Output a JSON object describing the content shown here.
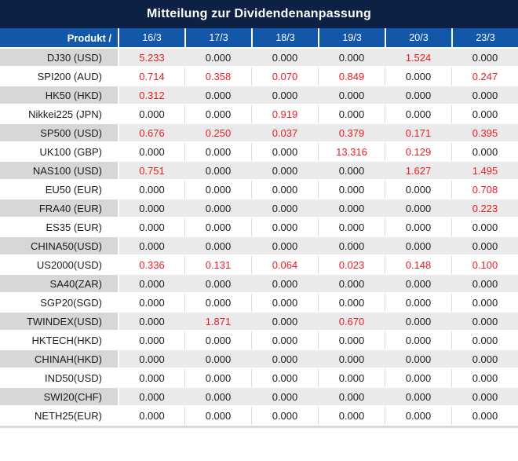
{
  "window": {
    "title": "Mitteilung zur Dividendenanpassung"
  },
  "table": {
    "product_column_header": "Produkt /",
    "date_headers": [
      "16/3",
      "17/3",
      "18/3",
      "19/3",
      "20/3",
      "23/3"
    ],
    "rows": [
      {
        "product": "DJ30 (USD)",
        "cells": [
          {
            "v": "5.233",
            "red": true
          },
          {
            "v": "0.000",
            "red": false
          },
          {
            "v": "0.000",
            "red": false
          },
          {
            "v": "0.000",
            "red": false
          },
          {
            "v": "1.524",
            "red": true
          },
          {
            "v": "0.000",
            "red": false
          }
        ]
      },
      {
        "product": "SPI200 (AUD)",
        "cells": [
          {
            "v": "0.714",
            "red": true
          },
          {
            "v": "0.358",
            "red": true
          },
          {
            "v": "0.070",
            "red": true
          },
          {
            "v": "0.849",
            "red": true
          },
          {
            "v": "0.000",
            "red": false
          },
          {
            "v": "0.247",
            "red": true
          }
        ]
      },
      {
        "product": "HK50 (HKD)",
        "cells": [
          {
            "v": "0.312",
            "red": true
          },
          {
            "v": "0.000",
            "red": false
          },
          {
            "v": "0.000",
            "red": false
          },
          {
            "v": "0.000",
            "red": false
          },
          {
            "v": "0.000",
            "red": false
          },
          {
            "v": "0.000",
            "red": false
          }
        ]
      },
      {
        "product": "Nikkei225 (JPN)",
        "cells": [
          {
            "v": "0.000",
            "red": false
          },
          {
            "v": "0.000",
            "red": false
          },
          {
            "v": "0.919",
            "red": true
          },
          {
            "v": "0.000",
            "red": false
          },
          {
            "v": "0.000",
            "red": false
          },
          {
            "v": "0.000",
            "red": false
          }
        ]
      },
      {
        "product": "SP500 (USD)",
        "cells": [
          {
            "v": "0.676",
            "red": true
          },
          {
            "v": "0.250",
            "red": true
          },
          {
            "v": "0.037",
            "red": true
          },
          {
            "v": "0.379",
            "red": true
          },
          {
            "v": "0.171",
            "red": true
          },
          {
            "v": "0.395",
            "red": true
          }
        ]
      },
      {
        "product": "UK100 (GBP)",
        "cells": [
          {
            "v": "0.000",
            "red": false
          },
          {
            "v": "0.000",
            "red": false
          },
          {
            "v": "0.000",
            "red": false
          },
          {
            "v": "13.316",
            "red": true
          },
          {
            "v": "0.129",
            "red": true
          },
          {
            "v": "0.000",
            "red": false
          }
        ]
      },
      {
        "product": "NAS100 (USD)",
        "cells": [
          {
            "v": "0.751",
            "red": true
          },
          {
            "v": "0.000",
            "red": false
          },
          {
            "v": "0.000",
            "red": false
          },
          {
            "v": "0.000",
            "red": false
          },
          {
            "v": "1.627",
            "red": true
          },
          {
            "v": "1.495",
            "red": true
          }
        ]
      },
      {
        "product": "EU50 (EUR)",
        "cells": [
          {
            "v": "0.000",
            "red": false
          },
          {
            "v": "0.000",
            "red": false
          },
          {
            "v": "0.000",
            "red": false
          },
          {
            "v": "0.000",
            "red": false
          },
          {
            "v": "0.000",
            "red": false
          },
          {
            "v": "0.708",
            "red": true
          }
        ]
      },
      {
        "product": "FRA40 (EUR)",
        "cells": [
          {
            "v": "0.000",
            "red": false
          },
          {
            "v": "0.000",
            "red": false
          },
          {
            "v": "0.000",
            "red": false
          },
          {
            "v": "0.000",
            "red": false
          },
          {
            "v": "0.000",
            "red": false
          },
          {
            "v": "0.223",
            "red": true
          }
        ]
      },
      {
        "product": "ES35 (EUR)",
        "cells": [
          {
            "v": "0.000",
            "red": false
          },
          {
            "v": "0.000",
            "red": false
          },
          {
            "v": "0.000",
            "red": false
          },
          {
            "v": "0.000",
            "red": false
          },
          {
            "v": "0.000",
            "red": false
          },
          {
            "v": "0.000",
            "red": false
          }
        ]
      },
      {
        "product": "CHINA50(USD)",
        "cells": [
          {
            "v": "0.000",
            "red": false
          },
          {
            "v": "0.000",
            "red": false
          },
          {
            "v": "0.000",
            "red": false
          },
          {
            "v": "0.000",
            "red": false
          },
          {
            "v": "0.000",
            "red": false
          },
          {
            "v": "0.000",
            "red": false
          }
        ]
      },
      {
        "product": "US2000(USD)",
        "cells": [
          {
            "v": "0.336",
            "red": true
          },
          {
            "v": "0.131",
            "red": true
          },
          {
            "v": "0.064",
            "red": true
          },
          {
            "v": "0.023",
            "red": true
          },
          {
            "v": "0.148",
            "red": true
          },
          {
            "v": "0.100",
            "red": true
          }
        ]
      },
      {
        "product": "SA40(ZAR)",
        "cells": [
          {
            "v": "0.000",
            "red": false
          },
          {
            "v": "0.000",
            "red": false
          },
          {
            "v": "0.000",
            "red": false
          },
          {
            "v": "0.000",
            "red": false
          },
          {
            "v": "0.000",
            "red": false
          },
          {
            "v": "0.000",
            "red": false
          }
        ]
      },
      {
        "product": "SGP20(SGD)",
        "cells": [
          {
            "v": "0.000",
            "red": false
          },
          {
            "v": "0.000",
            "red": false
          },
          {
            "v": "0.000",
            "red": false
          },
          {
            "v": "0.000",
            "red": false
          },
          {
            "v": "0.000",
            "red": false
          },
          {
            "v": "0.000",
            "red": false
          }
        ]
      },
      {
        "product": "TWINDEX(USD)",
        "cells": [
          {
            "v": "0.000",
            "red": false
          },
          {
            "v": "1.871",
            "red": true
          },
          {
            "v": "0.000",
            "red": false
          },
          {
            "v": "0.670",
            "red": true
          },
          {
            "v": "0.000",
            "red": false
          },
          {
            "v": "0.000",
            "red": false
          }
        ]
      },
      {
        "product": "HKTECH(HKD)",
        "cells": [
          {
            "v": "0.000",
            "red": false
          },
          {
            "v": "0.000",
            "red": false
          },
          {
            "v": "0.000",
            "red": false
          },
          {
            "v": "0.000",
            "red": false
          },
          {
            "v": "0.000",
            "red": false
          },
          {
            "v": "0.000",
            "red": false
          }
        ]
      },
      {
        "product": "CHINAH(HKD)",
        "cells": [
          {
            "v": "0.000",
            "red": false
          },
          {
            "v": "0.000",
            "red": false
          },
          {
            "v": "0.000",
            "red": false
          },
          {
            "v": "0.000",
            "red": false
          },
          {
            "v": "0.000",
            "red": false
          },
          {
            "v": "0.000",
            "red": false
          }
        ]
      },
      {
        "product": "IND50(USD)",
        "cells": [
          {
            "v": "0.000",
            "red": false
          },
          {
            "v": "0.000",
            "red": false
          },
          {
            "v": "0.000",
            "red": false
          },
          {
            "v": "0.000",
            "red": false
          },
          {
            "v": "0.000",
            "red": false
          },
          {
            "v": "0.000",
            "red": false
          }
        ]
      },
      {
        "product": "SWI20(CHF)",
        "cells": [
          {
            "v": "0.000",
            "red": false
          },
          {
            "v": "0.000",
            "red": false
          },
          {
            "v": "0.000",
            "red": false
          },
          {
            "v": "0.000",
            "red": false
          },
          {
            "v": "0.000",
            "red": false
          },
          {
            "v": "0.000",
            "red": false
          }
        ]
      },
      {
        "product": "NETH25(EUR)",
        "cells": [
          {
            "v": "0.000",
            "red": false
          },
          {
            "v": "0.000",
            "red": false
          },
          {
            "v": "0.000",
            "red": false
          },
          {
            "v": "0.000",
            "red": false
          },
          {
            "v": "0.000",
            "red": false
          },
          {
            "v": "0.000",
            "red": false
          }
        ]
      }
    ]
  },
  "colors": {
    "title_bar_navy": "#0d2145",
    "header_blue": "#1257a8",
    "row_label_gray": "#d7d7d7",
    "row_data_gray": "#eaeaea",
    "value_red": "#ec1c24",
    "value_black": "#1b1b1b",
    "divider_gray": "#dcdcdc",
    "bottom_strip_gray": "#d9d9d9"
  }
}
